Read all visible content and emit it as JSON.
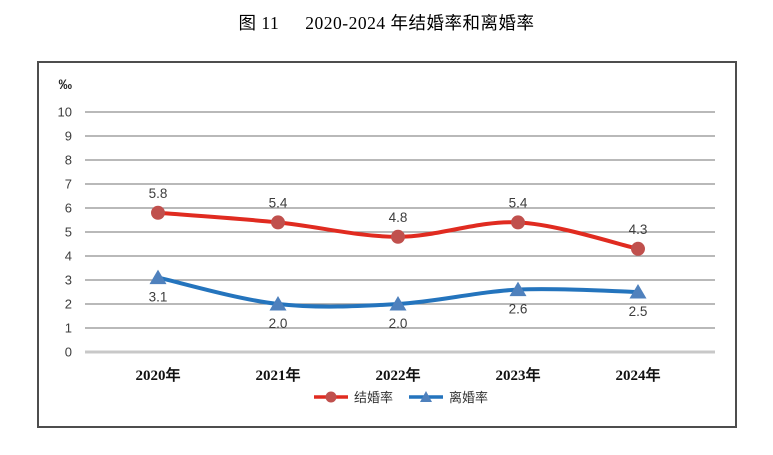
{
  "title": {
    "figure_label": "图 11",
    "text": "2020-2024 年结婚率和离婚率"
  },
  "chart_data": {
    "type": "line",
    "unit_label": "‰",
    "categories": [
      "2020年",
      "2021年",
      "2022年",
      "2023年",
      "2024年"
    ],
    "series": [
      {
        "name": "结婚率",
        "values": [
          5.8,
          5.4,
          4.8,
          5.4,
          4.3
        ],
        "data_labels": [
          "5.8",
          "5.4",
          "4.8",
          "5.4",
          "4.3"
        ],
        "line_color": "#e02b20",
        "marker_color": "#c0504d",
        "marker": "circle",
        "label_position": "above"
      },
      {
        "name": "离婚率",
        "values": [
          3.1,
          2.0,
          2.0,
          2.6,
          2.5
        ],
        "data_labels": [
          "3.1",
          "2.0",
          "2.0",
          "2.6",
          "2.5"
        ],
        "line_color": "#2474bd",
        "marker_color": "#4f81bd",
        "marker": "triangle",
        "label_position": "below"
      }
    ],
    "y_axis": {
      "min": 0,
      "max": 10,
      "ticks": [
        10,
        9,
        8,
        7,
        6,
        5,
        4,
        3,
        2,
        1,
        0
      ]
    },
    "grid": true,
    "legend_position": "bottom"
  },
  "colors": {
    "grid_line": "#8f8f8f",
    "zero_line": "#c8c8c8",
    "box_border": "#4d4d4d",
    "tick_text": "#3d3d3d",
    "x_label_text": "#111111",
    "data_label_text": "#3d3d3d"
  }
}
